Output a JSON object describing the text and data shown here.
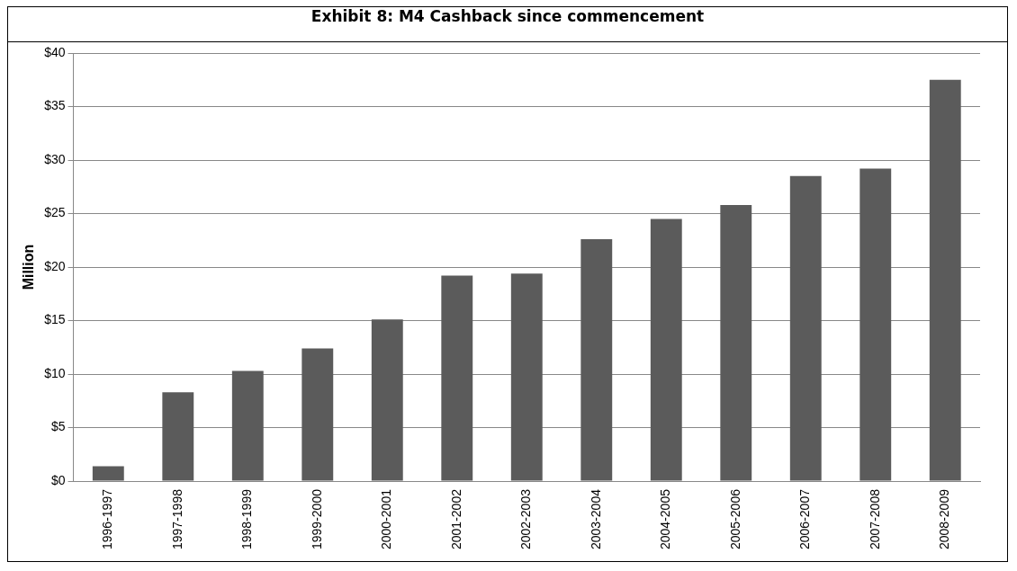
{
  "chart_data": {
    "type": "bar",
    "title": "Exhibit 8: M4 Cashback since commencement",
    "ylabel": "Million",
    "categories": [
      "1996-1997",
      "1997-1998",
      "1998-1999",
      "1999-2000",
      "2000-2001",
      "2001-2002",
      "2002-2003",
      "2003-2004",
      "2004-2005",
      "2005-2006",
      "2006-2007",
      "2007-2008",
      "2008-2009"
    ],
    "values": [
      1.4,
      8.3,
      10.3,
      12.4,
      15.1,
      19.2,
      19.4,
      22.6,
      24.5,
      25.8,
      28.5,
      29.2,
      37.5
    ],
    "color": "#5b5b5b",
    "ylim": [
      0,
      40
    ],
    "yticks": [
      {
        "value": 0,
        "label": "$0"
      },
      {
        "value": 5,
        "label": "$5"
      },
      {
        "value": 10,
        "label": "$10"
      },
      {
        "value": 15,
        "label": "$15"
      },
      {
        "value": 20,
        "label": "$20"
      },
      {
        "value": 25,
        "label": "$25"
      },
      {
        "value": 30,
        "label": "$30"
      },
      {
        "value": 35,
        "label": "$35"
      },
      {
        "value": 40,
        "label": "$40"
      }
    ],
    "grid": "y",
    "legend": false
  }
}
